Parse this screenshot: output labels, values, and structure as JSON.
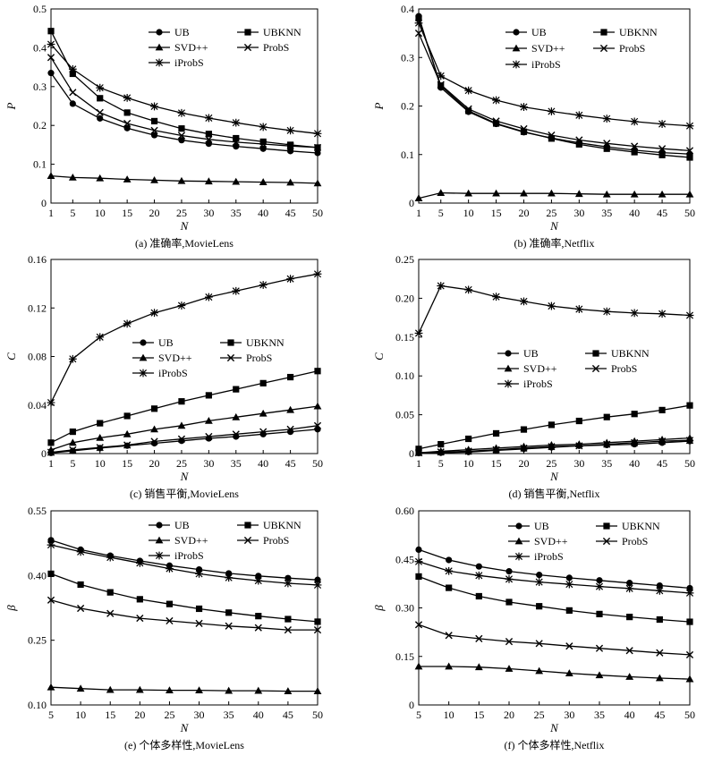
{
  "chart_data": [
    {
      "type": "line",
      "caption": "(a) 准确率,MovieLens",
      "xlabel": "N",
      "ylabel": "P",
      "x": [
        1,
        5,
        10,
        15,
        20,
        25,
        30,
        35,
        40,
        45,
        50
      ],
      "xticks": [
        "1",
        "5",
        "10",
        "15",
        "20",
        "25",
        "30",
        "35",
        "40",
        "45",
        "50"
      ],
      "ylim": [
        0,
        0.5
      ],
      "yticks": [
        "0",
        "0.1",
        "0.2",
        "0.3",
        "0.4",
        "0.5"
      ],
      "ytick_values": [
        0,
        0.1,
        0.2,
        0.3,
        0.4,
        0.5
      ],
      "legend_pos": "top-right",
      "series": [
        {
          "name": "UB",
          "marker": "circle",
          "values": [
            0.335,
            0.256,
            0.218,
            0.193,
            0.175,
            0.162,
            0.153,
            0.146,
            0.14,
            0.134,
            0.129
          ]
        },
        {
          "name": "UBKNN",
          "marker": "square",
          "values": [
            0.443,
            0.333,
            0.27,
            0.233,
            0.211,
            0.192,
            0.178,
            0.167,
            0.158,
            0.15,
            0.143
          ]
        },
        {
          "name": "SVD++",
          "marker": "triangle",
          "values": [
            0.07,
            0.066,
            0.064,
            0.061,
            0.059,
            0.057,
            0.056,
            0.055,
            0.054,
            0.053,
            0.051
          ]
        },
        {
          "name": "ProbS",
          "marker": "x",
          "values": [
            0.375,
            0.285,
            0.233,
            0.205,
            0.187,
            0.174,
            0.164,
            0.157,
            0.152,
            0.147,
            0.143
          ]
        },
        {
          "name": "iProbS",
          "marker": "star",
          "values": [
            0.409,
            0.345,
            0.297,
            0.271,
            0.249,
            0.232,
            0.219,
            0.207,
            0.196,
            0.187,
            0.179
          ]
        }
      ]
    },
    {
      "type": "line",
      "caption": "(b) 准确率,Netflix",
      "xlabel": "N",
      "ylabel": "P",
      "x": [
        1,
        5,
        10,
        15,
        20,
        25,
        30,
        35,
        40,
        45,
        50
      ],
      "xticks": [
        "1",
        "5",
        "10",
        "15",
        "20",
        "25",
        "30",
        "35",
        "40",
        "45",
        "50"
      ],
      "ylim": [
        0,
        0.4
      ],
      "yticks": [
        "0",
        "0.1",
        "0.2",
        "0.3",
        "0.4"
      ],
      "ytick_values": [
        0,
        0.1,
        0.2,
        0.3,
        0.4
      ],
      "legend_pos": "top-right",
      "series": [
        {
          "name": "UB",
          "marker": "circle",
          "values": [
            0.385,
            0.238,
            0.188,
            0.163,
            0.146,
            0.134,
            0.124,
            0.116,
            0.109,
            0.104,
            0.101
          ]
        },
        {
          "name": "UBKNN",
          "marker": "square",
          "values": [
            0.381,
            0.242,
            0.19,
            0.164,
            0.147,
            0.133,
            0.121,
            0.112,
            0.105,
            0.099,
            0.094
          ]
        },
        {
          "name": "SVD++",
          "marker": "triangle",
          "values": [
            0.01,
            0.021,
            0.02,
            0.02,
            0.02,
            0.02,
            0.019,
            0.018,
            0.018,
            0.018,
            0.018
          ]
        },
        {
          "name": "ProbS",
          "marker": "x",
          "values": [
            0.35,
            0.244,
            0.194,
            0.169,
            0.153,
            0.14,
            0.13,
            0.123,
            0.117,
            0.112,
            0.108
          ]
        },
        {
          "name": "iProbS",
          "marker": "star",
          "values": [
            0.371,
            0.262,
            0.232,
            0.212,
            0.198,
            0.189,
            0.181,
            0.174,
            0.168,
            0.163,
            0.159
          ]
        }
      ]
    },
    {
      "type": "line",
      "caption": "(c) 销售平衡,MovieLens",
      "xlabel": "N",
      "ylabel": "C",
      "x": [
        1,
        5,
        10,
        15,
        20,
        25,
        30,
        35,
        40,
        45,
        50
      ],
      "xticks": [
        "1",
        "5",
        "10",
        "15",
        "20",
        "25",
        "30",
        "35",
        "40",
        "45",
        "50"
      ],
      "ylim": [
        0,
        0.16
      ],
      "yticks": [
        "0",
        "0.04",
        "0.08",
        "0.12",
        "0.16"
      ],
      "ytick_values": [
        0,
        0.04,
        0.08,
        0.12,
        0.16
      ],
      "legend_pos": "center",
      "series": [
        {
          "name": "UB",
          "marker": "circle",
          "values": [
            0.0005,
            0.0022,
            0.0045,
            0.0065,
            0.0085,
            0.0105,
            0.0125,
            0.014,
            0.016,
            0.018,
            0.02
          ]
        },
        {
          "name": "UBKNN",
          "marker": "square",
          "values": [
            0.009,
            0.018,
            0.025,
            0.031,
            0.037,
            0.043,
            0.048,
            0.053,
            0.058,
            0.063,
            0.068
          ]
        },
        {
          "name": "SVD++",
          "marker": "triangle",
          "values": [
            0.003,
            0.009,
            0.013,
            0.016,
            0.02,
            0.023,
            0.027,
            0.03,
            0.033,
            0.036,
            0.039
          ]
        },
        {
          "name": "ProbS",
          "marker": "x",
          "values": [
            0.001,
            0.003,
            0.005,
            0.007,
            0.01,
            0.012,
            0.014,
            0.016,
            0.018,
            0.02,
            0.023
          ]
        },
        {
          "name": "iProbS",
          "marker": "star",
          "values": [
            0.042,
            0.078,
            0.096,
            0.107,
            0.116,
            0.122,
            0.129,
            0.134,
            0.139,
            0.144,
            0.148
          ]
        }
      ]
    },
    {
      "type": "line",
      "caption": "(d) 销售平衡,Netflix",
      "xlabel": "N",
      "ylabel": "C",
      "x": [
        1,
        5,
        10,
        15,
        20,
        25,
        30,
        35,
        40,
        45,
        50
      ],
      "xticks": [
        "1",
        "5",
        "10",
        "15",
        "20",
        "25",
        "30",
        "35",
        "40",
        "45",
        "50"
      ],
      "ylim": [
        0,
        0.25
      ],
      "yticks": [
        "0",
        "0.05",
        "0.10",
        "0.15",
        "0.20",
        "0.25"
      ],
      "ytick_values": [
        0,
        0.05,
        0.1,
        0.15,
        0.2,
        0.25
      ],
      "legend_pos": "center",
      "series": [
        {
          "name": "UB",
          "marker": "circle",
          "values": [
            0.0005,
            0.001,
            0.002,
            0.004,
            0.006,
            0.008,
            0.01,
            0.011,
            0.012,
            0.014,
            0.016
          ]
        },
        {
          "name": "UBKNN",
          "marker": "square",
          "values": [
            0.006,
            0.012,
            0.019,
            0.026,
            0.031,
            0.037,
            0.042,
            0.047,
            0.051,
            0.056,
            0.062
          ]
        },
        {
          "name": "SVD++",
          "marker": "triangle",
          "values": [
            0.001,
            0.003,
            0.005,
            0.007,
            0.009,
            0.011,
            0.012,
            0.014,
            0.016,
            0.018,
            0.02
          ]
        },
        {
          "name": "ProbS",
          "marker": "x",
          "values": [
            0.001,
            0.002,
            0.003,
            0.005,
            0.007,
            0.009,
            0.01,
            0.012,
            0.014,
            0.016,
            0.017
          ]
        },
        {
          "name": "iProbS",
          "marker": "star",
          "values": [
            0.155,
            0.216,
            0.211,
            0.202,
            0.196,
            0.19,
            0.186,
            0.183,
            0.181,
            0.18,
            0.178
          ]
        }
      ]
    },
    {
      "type": "line",
      "caption": "(e) 个体多样性,MovieLens",
      "xlabel": "N",
      "ylabel": "β",
      "x": [
        5,
        10,
        15,
        20,
        25,
        30,
        35,
        40,
        45,
        50
      ],
      "xticks": [
        "5",
        "10",
        "15",
        "20",
        "25",
        "30",
        "35",
        "40",
        "45",
        "50"
      ],
      "ylim": [
        0.1,
        0.55
      ],
      "yticks": [
        "0.10",
        "0.25",
        "0.40",
        "0.55"
      ],
      "ytick_values": [
        0.1,
        0.25,
        0.4,
        0.55
      ],
      "legend_pos": "top-right",
      "series": [
        {
          "name": "UB",
          "marker": "circle",
          "values": [
            0.482,
            0.46,
            0.446,
            0.434,
            0.423,
            0.414,
            0.405,
            0.399,
            0.394,
            0.39
          ]
        },
        {
          "name": "UBKNN",
          "marker": "square",
          "values": [
            0.404,
            0.379,
            0.361,
            0.345,
            0.334,
            0.323,
            0.314,
            0.306,
            0.299,
            0.293
          ]
        },
        {
          "name": "SVD++",
          "marker": "triangle",
          "values": [
            0.141,
            0.138,
            0.135,
            0.135,
            0.134,
            0.134,
            0.133,
            0.133,
            0.132,
            0.132
          ]
        },
        {
          "name": "ProbS",
          "marker": "x",
          "values": [
            0.343,
            0.324,
            0.312,
            0.301,
            0.295,
            0.289,
            0.283,
            0.279,
            0.274,
            0.274
          ]
        },
        {
          "name": "iProbS",
          "marker": "star",
          "values": [
            0.471,
            0.455,
            0.442,
            0.429,
            0.416,
            0.404,
            0.395,
            0.388,
            0.382,
            0.378
          ]
        }
      ]
    },
    {
      "type": "line",
      "caption": "(f) 个体多样性,Netflix",
      "xlabel": "N",
      "ylabel": "β",
      "x": [
        5,
        10,
        15,
        20,
        25,
        30,
        35,
        40,
        45,
        50
      ],
      "xticks": [
        "5",
        "10",
        "15",
        "20",
        "25",
        "30",
        "35",
        "40",
        "45",
        "50"
      ],
      "ylim": [
        0,
        0.6
      ],
      "yticks": [
        "0",
        "0.15",
        "0.30",
        "0.45",
        "0.60"
      ],
      "ytick_values": [
        0,
        0.15,
        0.3,
        0.45,
        0.6
      ],
      "legend_pos": "top-right",
      "series": [
        {
          "name": "UB",
          "marker": "circle",
          "values": [
            0.48,
            0.448,
            0.428,
            0.413,
            0.402,
            0.393,
            0.385,
            0.377,
            0.369,
            0.361
          ]
        },
        {
          "name": "UBKNN",
          "marker": "square",
          "values": [
            0.397,
            0.362,
            0.336,
            0.318,
            0.305,
            0.292,
            0.281,
            0.272,
            0.264,
            0.257
          ]
        },
        {
          "name": "SVD++",
          "marker": "triangle",
          "values": [
            0.119,
            0.119,
            0.117,
            0.112,
            0.105,
            0.098,
            0.092,
            0.087,
            0.083,
            0.08
          ]
        },
        {
          "name": "ProbS",
          "marker": "x",
          "values": [
            0.248,
            0.215,
            0.205,
            0.196,
            0.19,
            0.182,
            0.175,
            0.168,
            0.161,
            0.155
          ]
        },
        {
          "name": "iProbS",
          "marker": "star",
          "values": [
            0.443,
            0.414,
            0.4,
            0.389,
            0.38,
            0.373,
            0.366,
            0.36,
            0.353,
            0.346
          ]
        }
      ]
    }
  ]
}
